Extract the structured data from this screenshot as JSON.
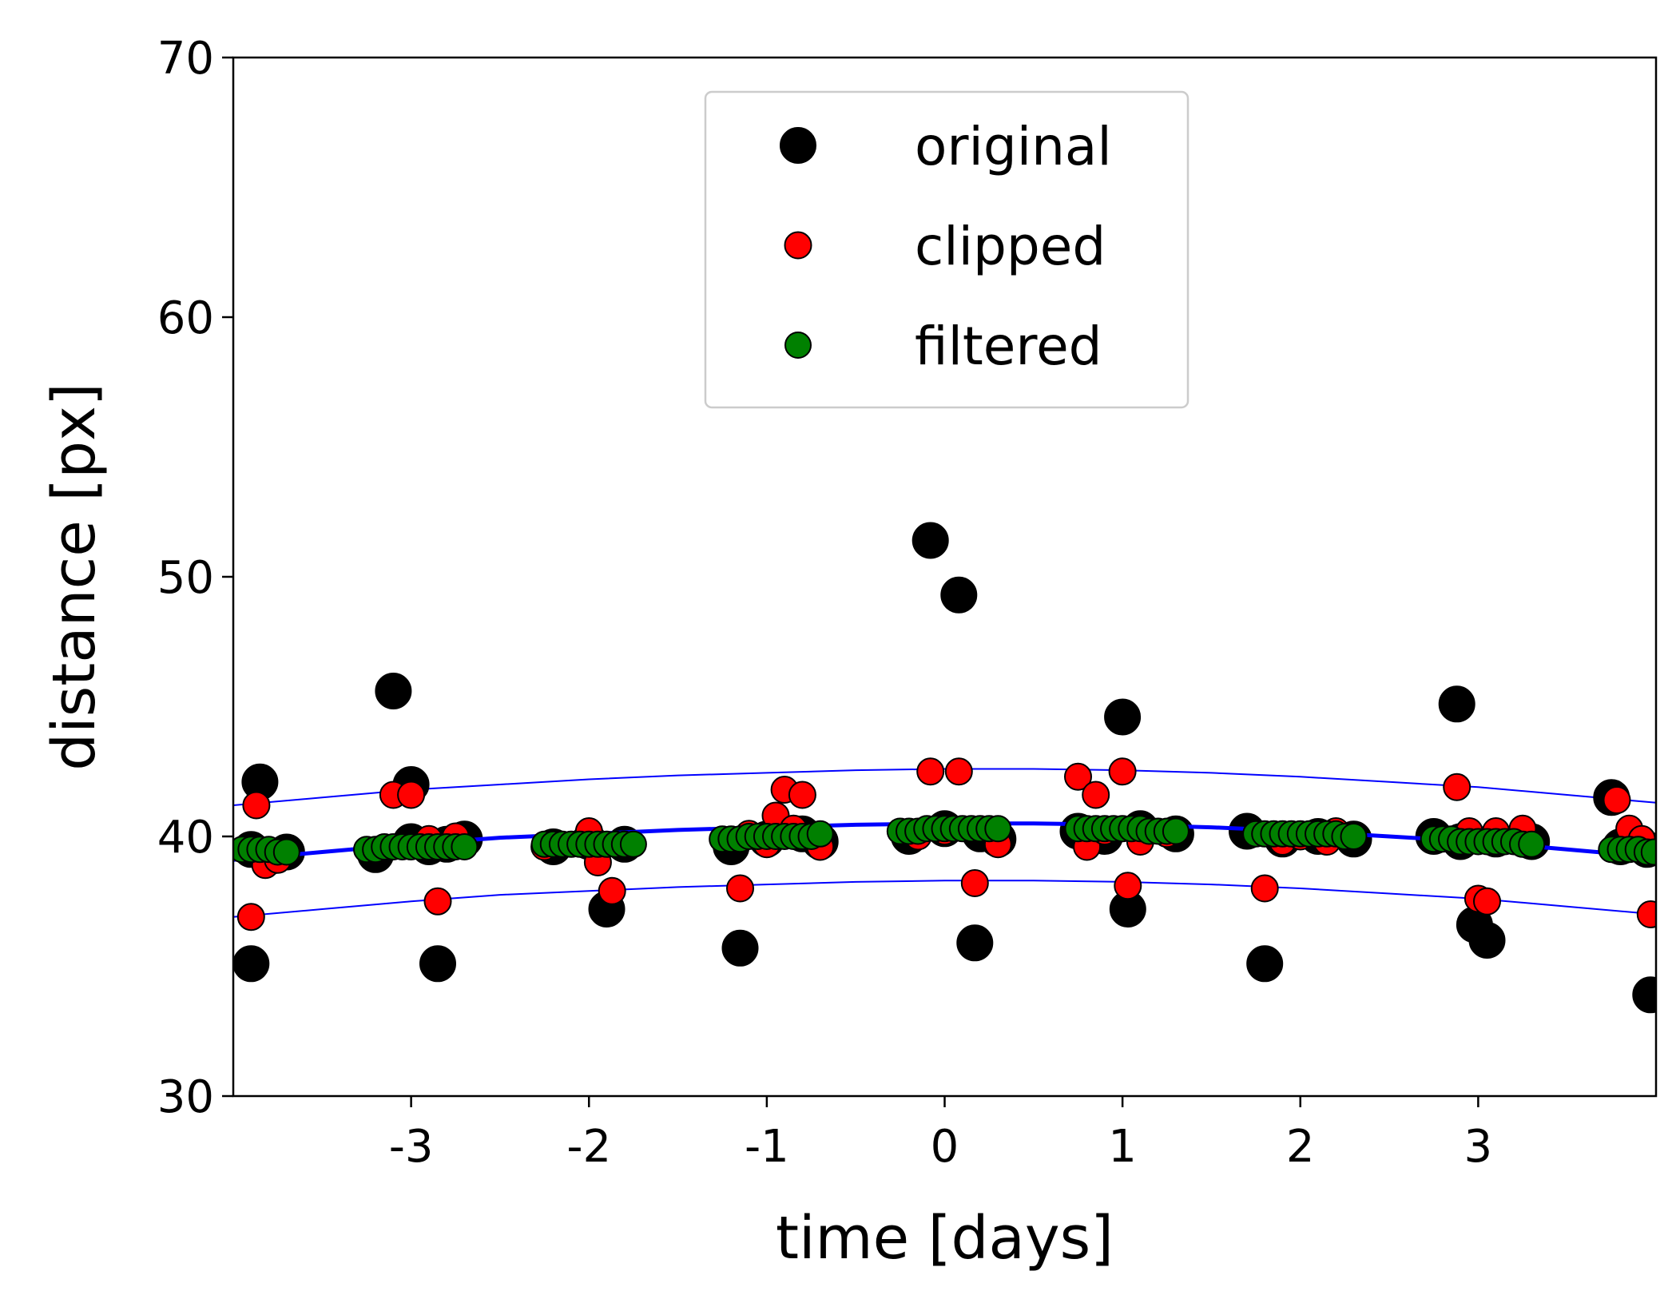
{
  "chart_data": {
    "type": "scatter",
    "xlabel": "time [days]",
    "ylabel": "distance [px]",
    "xlim": [
      -4.0,
      4.0
    ],
    "ylim": [
      30,
      70
    ],
    "xticks": [
      -3,
      -2,
      -1,
      0,
      1,
      2,
      3
    ],
    "xtick_labels": [
      "-3",
      "-2",
      "-1",
      "0",
      "1",
      "2",
      "3"
    ],
    "yticks": [
      30,
      40,
      50,
      60,
      70
    ],
    "ytick_labels": [
      "30",
      "40",
      "50",
      "60",
      "70"
    ],
    "grid": false,
    "legend": {
      "position": "top-center",
      "entries": [
        {
          "label": "original",
          "marker_color": "#000000"
        },
        {
          "label": "clipped",
          "marker_color": "#ff0000"
        },
        {
          "label": "filtered",
          "marker_color": "#008000"
        }
      ]
    },
    "colors": {
      "fit": "#0000ff",
      "original": "#000000",
      "clipped": "#ff0000",
      "filtered": "#008000"
    },
    "fit_line": {
      "x": [
        -4.0,
        -3.5,
        -3.0,
        -2.5,
        -2.0,
        -1.5,
        -1.0,
        -0.5,
        0.0,
        0.5,
        1.0,
        1.5,
        2.0,
        2.5,
        3.0,
        3.5,
        4.0
      ],
      "y": [
        39.1,
        39.4,
        39.7,
        39.95,
        40.1,
        40.25,
        40.35,
        40.45,
        40.5,
        40.5,
        40.45,
        40.35,
        40.2,
        40.0,
        39.8,
        39.5,
        39.2
      ]
    },
    "upper_band": {
      "x": [
        -4.0,
        -3.5,
        -3.0,
        -2.5,
        -2.0,
        -1.5,
        -1.0,
        -0.5,
        0.0,
        0.5,
        1.0,
        1.5,
        2.0,
        2.5,
        3.0,
        3.5,
        4.0
      ],
      "y": [
        41.2,
        41.5,
        41.8,
        42.0,
        42.2,
        42.35,
        42.45,
        42.55,
        42.6,
        42.6,
        42.55,
        42.45,
        42.3,
        42.1,
        41.9,
        41.6,
        41.3
      ]
    },
    "lower_band": {
      "x": [
        -4.0,
        -3.5,
        -3.0,
        -2.5,
        -2.0,
        -1.5,
        -1.0,
        -0.5,
        0.0,
        0.5,
        1.0,
        1.5,
        2.0,
        2.5,
        3.0,
        3.5,
        4.0
      ],
      "y": [
        36.9,
        37.2,
        37.5,
        37.75,
        37.9,
        38.05,
        38.15,
        38.25,
        38.3,
        38.3,
        38.25,
        38.15,
        38.0,
        37.8,
        37.6,
        37.3,
        37.0
      ]
    },
    "series": [
      {
        "name": "original",
        "x": [
          -3.9,
          -3.85,
          -3.1,
          -3.0,
          -2.85,
          -1.9,
          -1.15,
          -0.08,
          0.08,
          0.17,
          1.0,
          1.03,
          1.8,
          2.88,
          2.98,
          3.05,
          3.75,
          3.97
        ],
        "y": [
          35.1,
          42.1,
          45.6,
          42.0,
          35.1,
          37.2,
          35.7,
          51.4,
          49.3,
          35.9,
          44.6,
          37.2,
          35.1,
          45.1,
          36.6,
          36.0,
          41.5,
          33.9
        ],
        "extra_x": [
          -3.9,
          -3.8,
          -3.7,
          -3.2,
          -3.0,
          -2.9,
          -2.8,
          -2.7,
          -2.2,
          -2.0,
          -1.8,
          -1.2,
          -1.0,
          -0.8,
          -0.7,
          -0.2,
          0.0,
          0.2,
          0.3,
          0.75,
          0.9,
          1.1,
          1.3,
          1.7,
          1.9,
          2.1,
          2.3,
          2.75,
          2.9,
          3.1,
          3.3,
          3.8,
          3.95
        ],
        "extra_y": [
          39.5,
          39.2,
          39.4,
          39.3,
          39.8,
          39.6,
          39.7,
          39.9,
          39.6,
          39.8,
          39.7,
          39.6,
          39.9,
          40.1,
          39.8,
          40.0,
          40.3,
          40.1,
          39.9,
          40.2,
          40.0,
          40.3,
          40.1,
          40.2,
          39.9,
          40.0,
          39.9,
          40.0,
          39.8,
          39.9,
          39.8,
          39.6,
          39.5
        ]
      },
      {
        "name": "clipped",
        "x": [
          -3.9,
          -3.87,
          -3.82,
          -3.75,
          -3.1,
          -3.0,
          -2.9,
          -2.85,
          -2.75,
          -2.25,
          -2.0,
          -1.95,
          -1.87,
          -1.8,
          -1.15,
          -1.1,
          -1.0,
          -0.95,
          -0.9,
          -0.85,
          -0.8,
          -0.7,
          -0.15,
          -0.08,
          0.0,
          0.08,
          0.17,
          0.3,
          0.75,
          0.8,
          0.85,
          0.9,
          1.0,
          1.03,
          1.1,
          1.25,
          1.8,
          1.9,
          2.0,
          2.15,
          2.2,
          2.88,
          2.95,
          3.0,
          3.05,
          3.1,
          3.25,
          3.78,
          3.85,
          3.92,
          3.97
        ],
        "y": [
          36.9,
          41.2,
          38.9,
          39.1,
          41.6,
          41.6,
          39.9,
          37.5,
          40.0,
          39.6,
          40.2,
          39.0,
          37.9,
          39.7,
          38.0,
          40.1,
          39.7,
          40.8,
          41.8,
          40.3,
          41.6,
          39.6,
          40.0,
          42.5,
          40.2,
          42.5,
          38.2,
          39.7,
          42.3,
          39.6,
          41.6,
          40.2,
          42.5,
          38.1,
          39.8,
          40.1,
          38.0,
          39.8,
          40.0,
          39.8,
          40.2,
          41.9,
          40.2,
          37.6,
          37.5,
          40.2,
          40.3,
          41.4,
          40.3,
          39.9,
          37.0
        ]
      },
      {
        "name": "filtered",
        "x": [
          -3.95,
          -3.9,
          -3.85,
          -3.8,
          -3.75,
          -3.7,
          -3.25,
          -3.2,
          -3.15,
          -3.1,
          -3.05,
          -3.0,
          -2.95,
          -2.9,
          -2.85,
          -2.8,
          -2.75,
          -2.7,
          -2.25,
          -2.2,
          -2.15,
          -2.1,
          -2.05,
          -2.0,
          -1.95,
          -1.9,
          -1.85,
          -1.8,
          -1.75,
          -1.25,
          -1.2,
          -1.15,
          -1.1,
          -1.05,
          -1.0,
          -0.95,
          -0.9,
          -0.85,
          -0.8,
          -0.75,
          -0.7,
          -0.25,
          -0.2,
          -0.15,
          -0.1,
          -0.05,
          0.0,
          0.05,
          0.1,
          0.15,
          0.2,
          0.25,
          0.3,
          0.75,
          0.8,
          0.85,
          0.9,
          0.95,
          1.0,
          1.05,
          1.1,
          1.15,
          1.2,
          1.25,
          1.3,
          1.75,
          1.8,
          1.85,
          1.9,
          1.95,
          2.0,
          2.05,
          2.1,
          2.15,
          2.2,
          2.25,
          2.3,
          2.75,
          2.8,
          2.85,
          2.9,
          2.95,
          3.0,
          3.05,
          3.1,
          3.15,
          3.2,
          3.25,
          3.3,
          3.75,
          3.8,
          3.85,
          3.9,
          3.95,
          3.99
        ],
        "y": [
          39.5,
          39.5,
          39.5,
          39.5,
          39.4,
          39.4,
          39.5,
          39.5,
          39.6,
          39.6,
          39.6,
          39.6,
          39.6,
          39.6,
          39.6,
          39.6,
          39.6,
          39.6,
          39.7,
          39.7,
          39.7,
          39.7,
          39.7,
          39.7,
          39.7,
          39.7,
          39.7,
          39.7,
          39.7,
          39.9,
          39.9,
          39.9,
          40.0,
          40.0,
          40.0,
          40.0,
          40.0,
          40.0,
          40.0,
          40.0,
          40.1,
          40.2,
          40.2,
          40.2,
          40.3,
          40.3,
          40.3,
          40.3,
          40.3,
          40.3,
          40.3,
          40.3,
          40.3,
          40.3,
          40.3,
          40.3,
          40.3,
          40.3,
          40.3,
          40.3,
          40.3,
          40.2,
          40.2,
          40.2,
          40.2,
          40.1,
          40.1,
          40.1,
          40.1,
          40.1,
          40.1,
          40.1,
          40.1,
          40.1,
          40.1,
          40.0,
          40.0,
          39.9,
          39.9,
          39.9,
          39.8,
          39.8,
          39.8,
          39.8,
          39.8,
          39.8,
          39.8,
          39.7,
          39.7,
          39.5,
          39.5,
          39.5,
          39.5,
          39.4,
          39.4
        ]
      }
    ]
  }
}
